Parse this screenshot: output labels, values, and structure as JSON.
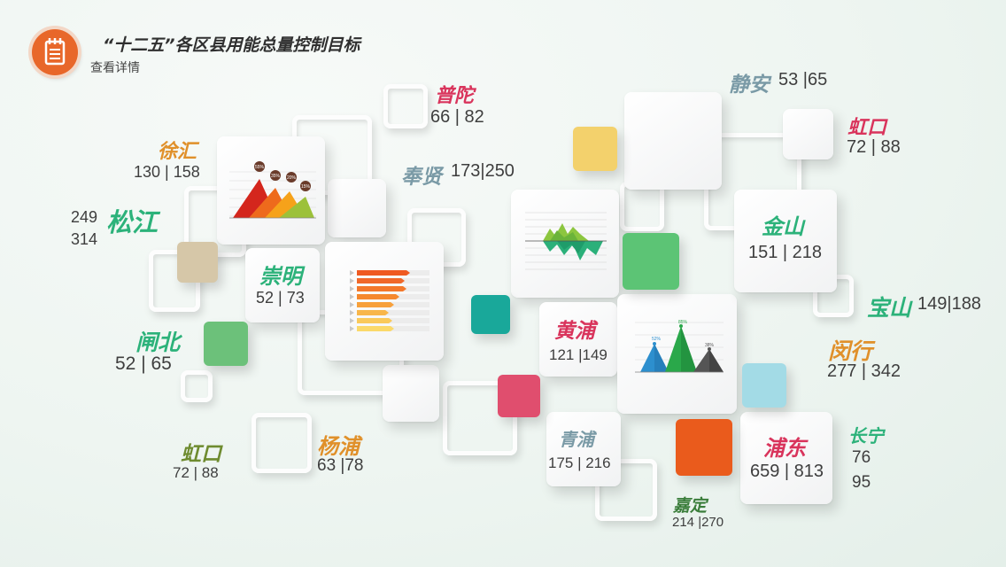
{
  "header": {
    "title": "“十二五”各区县用能总量控制目标",
    "subtitle": "查看详情",
    "icon": "notepad-icon"
  },
  "colors": {
    "orange": "#e8672a",
    "red": "#d9345c",
    "green": "#2cb27a",
    "grey_blue": "#7a9aa6",
    "olive": "#6e8b2f",
    "amber": "#e0902a",
    "dark_green": "#3a7d3a"
  },
  "districts": {
    "putuo": {
      "name": "普陀",
      "values": "66 | 82"
    },
    "jingan": {
      "name": "静安",
      "values": "53 |65"
    },
    "hongkou_r": {
      "name": "虹口",
      "values": "72 | 88"
    },
    "xuhui": {
      "name": "徐汇",
      "values": "130 | 158"
    },
    "fengxian": {
      "name": "奉贤",
      "values": "173|250"
    },
    "songjiang": {
      "name": "松江",
      "v1": "249",
      "v2": "314"
    },
    "chongming": {
      "name": "崇明",
      "values": "52 | 73"
    },
    "jinshan": {
      "name": "金山",
      "values": "151 | 218"
    },
    "baoshan": {
      "name": "宝山",
      "values": "149|188"
    },
    "zhabei": {
      "name": "闸北",
      "values": "52 | 65"
    },
    "huangpu": {
      "name": "黄浦",
      "values": "121 |149"
    },
    "minhang": {
      "name": "闵行",
      "values": "277 | 342"
    },
    "hongkou_l": {
      "name": "虹口",
      "values": "72 | 88"
    },
    "yangpu": {
      "name": "杨浦",
      "values": "63 |78"
    },
    "qingpu": {
      "name": "青浦",
      "values": "175 | 216"
    },
    "pudong": {
      "name": "浦东",
      "values": "659 | 813"
    },
    "changning": {
      "name": "长宁",
      "v1": "76",
      "v2": "95"
    },
    "jiading": {
      "name": "嘉定",
      "values": "214  |270"
    }
  },
  "charts": {
    "triangle": {
      "labels": [
        "55%",
        "35%",
        "20%",
        "15%"
      ]
    },
    "mountain": {
      "labels": [
        "52%",
        "85%",
        "38%"
      ]
    }
  }
}
